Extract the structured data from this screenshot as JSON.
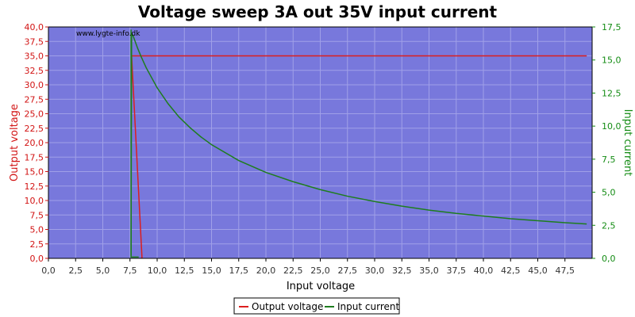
{
  "chart_data": {
    "type": "line",
    "title": "Voltage sweep 3A out 35V input current",
    "watermark": "www.lygte-info.dk",
    "xlabel": "Input voltage",
    "ylabel": "Output voltage",
    "y2label": "Input current",
    "xlim": [
      0,
      50
    ],
    "ylim": [
      0,
      40
    ],
    "y2lim": [
      0,
      17.5
    ],
    "x_ticks": [
      "0,0",
      "2,5",
      "5,0",
      "7,5",
      "10,0",
      "12,5",
      "15,0",
      "17,5",
      "20,0",
      "22,5",
      "25,0",
      "27,5",
      "30,0",
      "32,5",
      "35,0",
      "37,5",
      "40,0",
      "42,5",
      "45,0",
      "47,5"
    ],
    "y_ticks": [
      "0,0",
      "2,5",
      "5,0",
      "7,5",
      "10,0",
      "12,5",
      "15,0",
      "17,5",
      "20,0",
      "22,5",
      "25,0",
      "27,5",
      "30,0",
      "32,5",
      "35,0",
      "37,5",
      "40,0"
    ],
    "y2_ticks": [
      "0,0",
      "2,5",
      "5,0",
      "7,5",
      "10,0",
      "12,5",
      "15,0",
      "17,5"
    ],
    "grid": true,
    "legend_position": "bottom-center",
    "colors": {
      "plot_bg": "#7878dc",
      "grid": "#a0a0e8",
      "output_voltage": "#dc1e1e",
      "input_current": "#1e7d1e",
      "left_axis": "#d21414",
      "right_axis": "#148c14"
    },
    "series": [
      {
        "name": "Output voltage",
        "axis": "left",
        "x": [
          7.6,
          7.7,
          8.0,
          8.5,
          9,
          10,
          15,
          20,
          25,
          30,
          35,
          40,
          45,
          49.5
        ],
        "y": [
          35.0,
          35.0,
          35.0,
          35.0,
          35.0,
          35.0,
          35.0,
          35.0,
          35.0,
          35.0,
          35.0,
          35.0,
          35.0,
          35.0
        ],
        "drop": {
          "x": [
            7.65,
            8.6,
            8.6
          ],
          "y": [
            35.0,
            0.3,
            0.0
          ]
        }
      },
      {
        "name": "Input current",
        "axis": "right",
        "x": [
          7.6,
          7.65,
          7.8,
          8.2,
          8.5,
          9,
          10,
          11,
          12,
          13,
          14,
          15,
          17.5,
          20,
          22.5,
          25,
          27.5,
          30,
          32.5,
          35,
          37.5,
          40,
          42.5,
          45,
          47.5,
          49.5
        ],
        "y": [
          0.2,
          17.0,
          16.8,
          15.9,
          15.3,
          14.4,
          12.9,
          11.7,
          10.7,
          9.9,
          9.2,
          8.6,
          7.4,
          6.5,
          5.8,
          5.2,
          4.7,
          4.3,
          3.95,
          3.65,
          3.4,
          3.2,
          3.0,
          2.85,
          2.7,
          2.6
        ],
        "drop": {
          "x": [
            7.6,
            7.6,
            8.3
          ],
          "y": [
            17.3,
            0.1,
            0.1
          ]
        }
      }
    ]
  }
}
